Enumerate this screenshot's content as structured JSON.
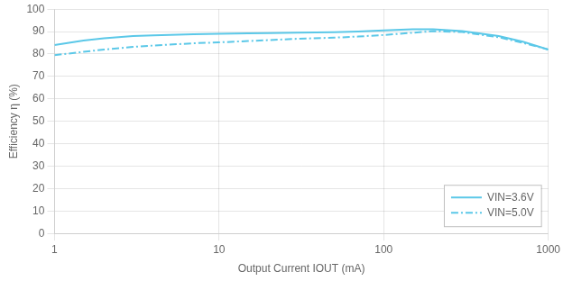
{
  "chart_data": {
    "type": "line",
    "xlabel": "Output Current IOUT (mA)",
    "ylabel": "Efficiency η (%)",
    "x": [
      1,
      1.5,
      2,
      3,
      4,
      5,
      7,
      10,
      15,
      20,
      30,
      50,
      70,
      100,
      150,
      200,
      300,
      500,
      700,
      1000
    ],
    "series": [
      {
        "name": "VIN=3.6V",
        "color": "#5bc8e8",
        "line_style": "solid",
        "values": [
          84.0,
          86.0,
          87.0,
          88.0,
          88.3,
          88.5,
          88.8,
          89.0,
          89.2,
          89.3,
          89.5,
          89.7,
          90.0,
          90.5,
          91.0,
          91.0,
          90.2,
          88.0,
          85.5,
          82.0
        ]
      },
      {
        "name": "VIN=5.0V",
        "color": "#5bc8e8",
        "line_style": "dashdot",
        "values": [
          79.5,
          81.0,
          82.0,
          83.2,
          83.8,
          84.2,
          84.8,
          85.2,
          85.8,
          86.2,
          86.8,
          87.3,
          87.8,
          88.5,
          89.5,
          90.2,
          89.8,
          87.5,
          85.0,
          82.0
        ]
      }
    ],
    "log": "x",
    "xlim": [
      1,
      1000
    ],
    "xticks": [
      1,
      10,
      100,
      1000
    ],
    "ylim": [
      0,
      100
    ],
    "yticks": [
      0,
      10,
      20,
      30,
      40,
      50,
      60,
      70,
      80,
      90,
      100
    ],
    "grid": true,
    "legend": "lower right"
  }
}
